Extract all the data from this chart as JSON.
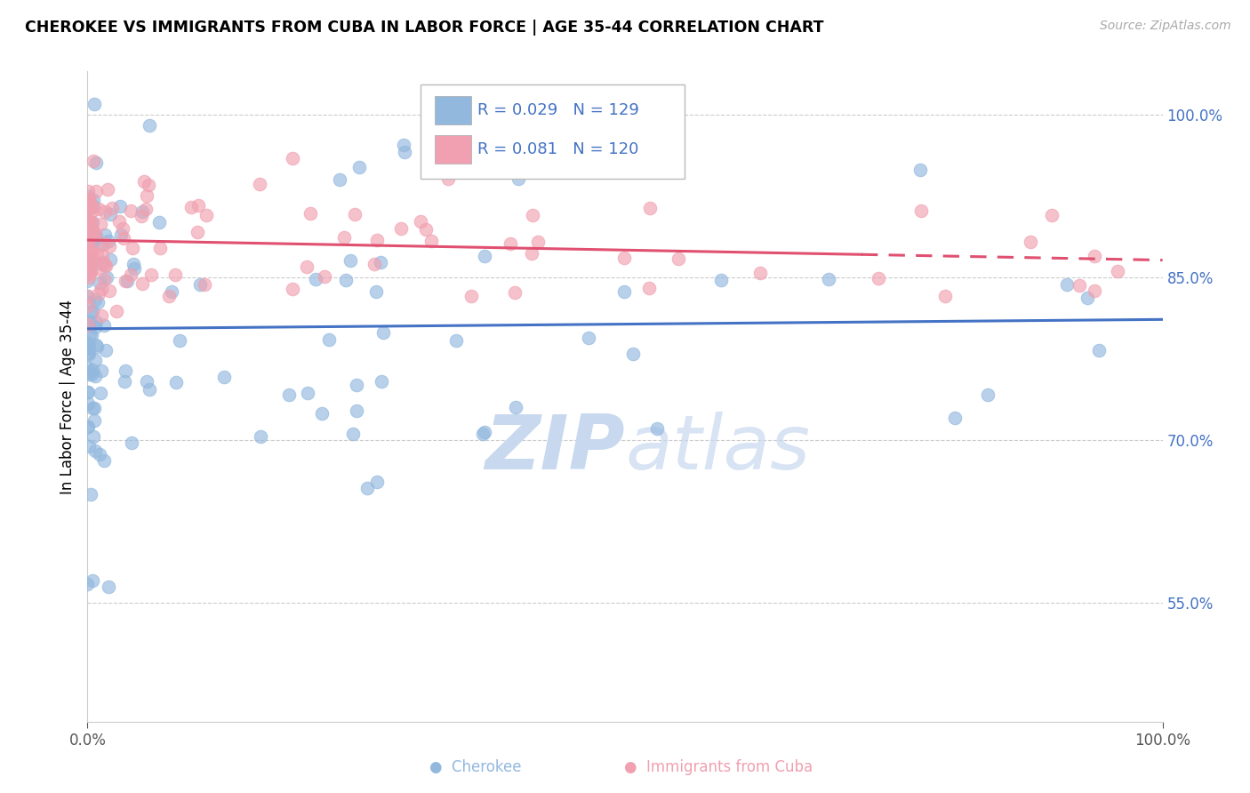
{
  "title": "CHEROKEE VS IMMIGRANTS FROM CUBA IN LABOR FORCE | AGE 35-44 CORRELATION CHART",
  "source": "Source: ZipAtlas.com",
  "ylabel": "In Labor Force | Age 35-44",
  "ytick_vals": [
    0.55,
    0.7,
    0.85,
    1.0
  ],
  "ytick_labels": [
    "55.0%",
    "70.0%",
    "85.0%",
    "100.0%"
  ],
  "xtick_vals": [
    0.0,
    1.0
  ],
  "xtick_labels": [
    "0.0%",
    "100.0%"
  ],
  "legend_labels": [
    "Cherokee",
    "Immigrants from Cuba"
  ],
  "legend_r": [
    0.029,
    0.081
  ],
  "legend_n": [
    129,
    120
  ],
  "cherokee_color": "#92b8de",
  "cuba_color": "#f0a0b0",
  "cherokee_line_color": "#4472C4",
  "cuba_line_color": "#E05070",
  "tick_color": "#4472C4",
  "background_color": "#ffffff",
  "watermark_color": "#c8d8ee",
  "xlim": [
    0.0,
    1.0
  ],
  "ylim": [
    0.44,
    1.04
  ],
  "grid_color": "#cccccc",
  "cherokee_line_y0": 0.816,
  "cherokee_line_y1": 0.826,
  "cuba_line_y0": 0.873,
  "cuba_line_y1": 0.883,
  "cuba_line_solid_end": 0.72
}
